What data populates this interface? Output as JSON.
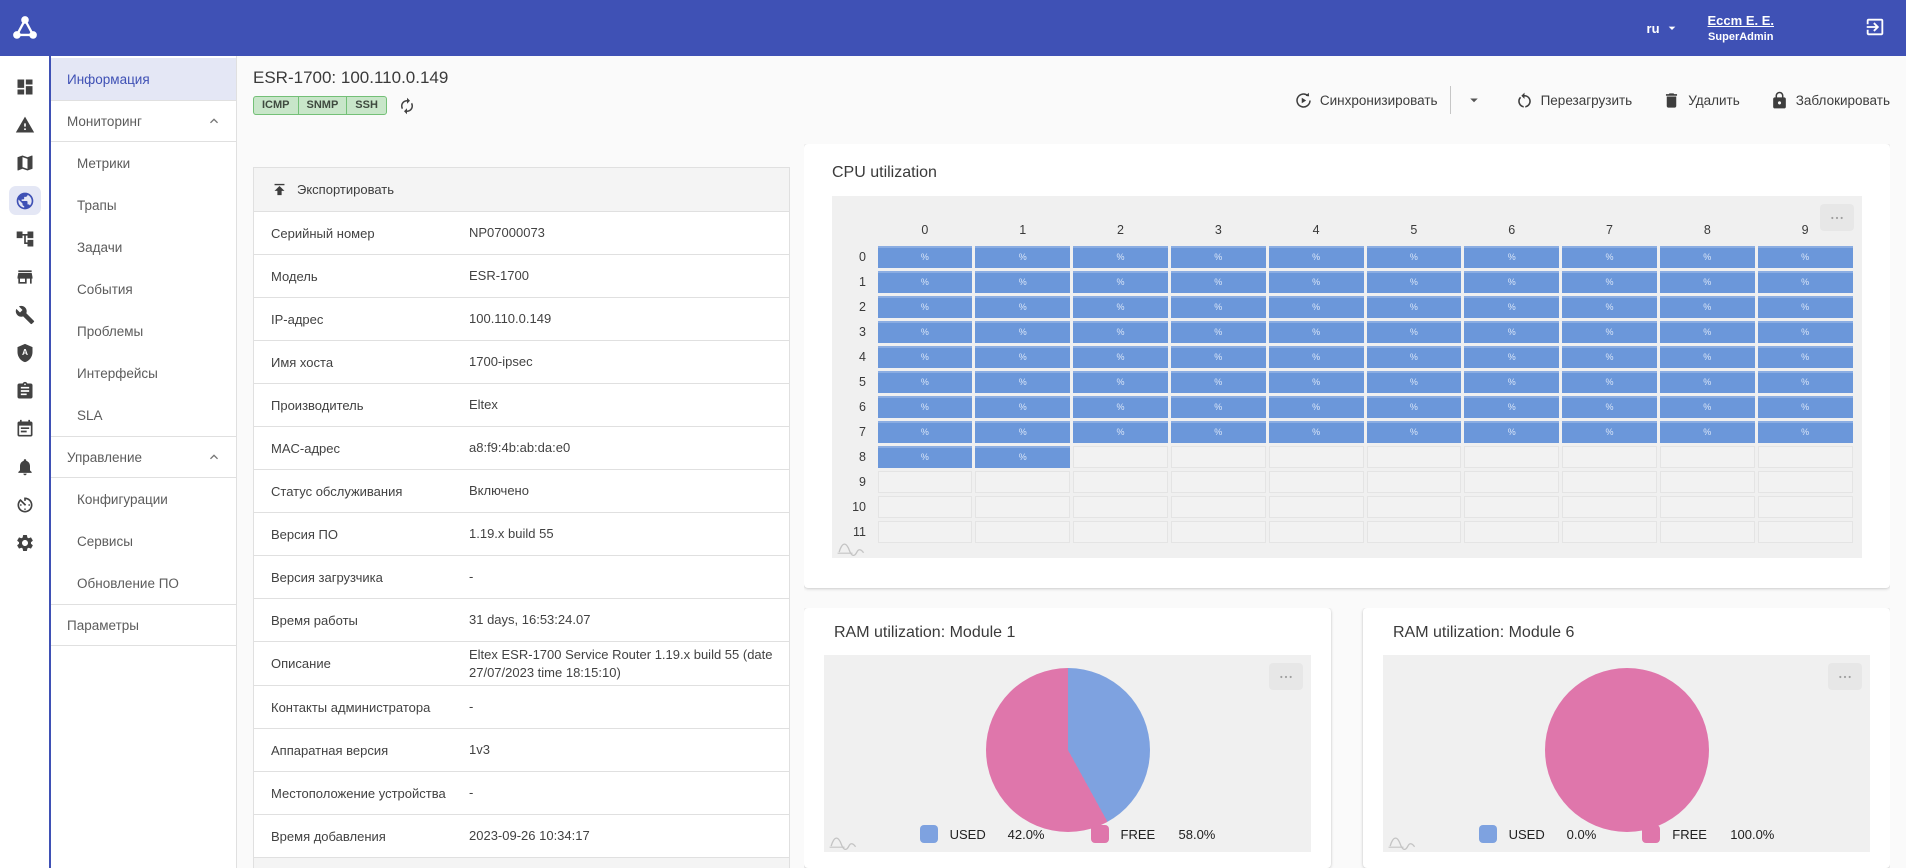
{
  "colors": {
    "accent": "#3f51b5",
    "accent_light": "#e4e7f5",
    "badge_bg": "#c8e6c9",
    "badge_border": "#74c077",
    "card_area": "#f0f0f0",
    "heat_fill": "#6b97da",
    "heat_label": "#d9e5f7",
    "pie_used": "#7ea2e0",
    "pie_free": "#df76ab"
  },
  "topbar": {
    "lang": "ru",
    "user_name": "Eccm E. E.",
    "user_role": "SuperAdmin"
  },
  "rail": {
    "icons": [
      {
        "icon": "dashboard-icon",
        "active": false
      },
      {
        "icon": "alerts-warning-icon",
        "active": false
      },
      {
        "icon": "map-icon",
        "active": false
      },
      {
        "icon": "devices-globe-icon",
        "active": true
      },
      {
        "icon": "topology-icon",
        "active": false
      },
      {
        "icon": "store-icon",
        "active": false
      },
      {
        "icon": "tools-wrench-icon",
        "active": false
      },
      {
        "icon": "security-badge-icon",
        "active": false
      },
      {
        "icon": "tasks-clipboard-icon",
        "active": false
      },
      {
        "icon": "calendar-icon",
        "active": false
      },
      {
        "icon": "notifications-bell-icon",
        "active": false
      },
      {
        "icon": "gauge-timer-icon",
        "active": false
      },
      {
        "icon": "settings-gear-icon",
        "active": false
      }
    ]
  },
  "sidebar": {
    "items": [
      {
        "label": "Информация",
        "type": "link",
        "active": true
      },
      {
        "label": "Мониторинг",
        "type": "section",
        "chevron": "up"
      },
      {
        "label": "Метрики",
        "type": "sub"
      },
      {
        "label": "Трапы",
        "type": "sub"
      },
      {
        "label": "Задачи",
        "type": "sub"
      },
      {
        "label": "События",
        "type": "sub"
      },
      {
        "label": "Проблемы",
        "type": "sub"
      },
      {
        "label": "Интерфейсы",
        "type": "sub"
      },
      {
        "label": "SLA",
        "type": "sub"
      },
      {
        "label": "Управление",
        "type": "section",
        "chevron": "up"
      },
      {
        "label": "Конфигурации",
        "type": "sub"
      },
      {
        "label": "Сервисы",
        "type": "sub"
      },
      {
        "label": "Обновление ПО",
        "type": "sub"
      },
      {
        "label": "Параметры",
        "type": "link",
        "bordered": true
      }
    ]
  },
  "header": {
    "title": "ESR-1700: 100.110.0.149",
    "badges": [
      "ICMP",
      "SNMP",
      "SSH"
    ],
    "actions": [
      {
        "label": "Синхронизировать",
        "icon": "sync-icon",
        "split": true
      },
      {
        "label": "Перезагрузить",
        "icon": "restart-icon"
      },
      {
        "label": "Удалить",
        "icon": "delete-trash-icon"
      },
      {
        "label": "Заблокировать",
        "icon": "lock-icon"
      }
    ]
  },
  "info": {
    "export_label": "Экспортировать",
    "rows": [
      {
        "label": "Серийный номер",
        "value": "NP07000073"
      },
      {
        "label": "Модель",
        "value": "ESR-1700"
      },
      {
        "label": "IP-адрес",
        "value": "100.110.0.149"
      },
      {
        "label": "Имя хоста",
        "value": "1700-ipsec"
      },
      {
        "label": "Производитель",
        "value": "Eltex"
      },
      {
        "label": "MAC-адрес",
        "value": "a8:f9:4b:ab:da:e0"
      },
      {
        "label": "Статус обслуживания",
        "value": "Включено"
      },
      {
        "label": "Версия ПО",
        "value": "1.19.x build 55"
      },
      {
        "label": "Версия загрузчика",
        "value": "-"
      },
      {
        "label": "Время работы",
        "value": "31 days, 16:53:24.07"
      },
      {
        "label": "Описание",
        "value": "Eltex ESR-1700 Service Router 1.19.x build 55 (date 27/07/2023 time 18:15:10)"
      },
      {
        "label": "Контакты администратора",
        "value": "-"
      },
      {
        "label": "Аппаратная версия",
        "value": "1v3"
      },
      {
        "label": "Местоположение устройства",
        "value": "-"
      },
      {
        "label": "Время добавления",
        "value": "2023-09-26 10:34:17"
      }
    ]
  },
  "chart_data": [
    {
      "type": "heatmap",
      "title": "CPU utilization",
      "columns": [
        "0",
        "1",
        "2",
        "3",
        "4",
        "5",
        "6",
        "7",
        "8",
        "9"
      ],
      "rows": [
        "0",
        "1",
        "2",
        "3",
        "4",
        "5",
        "6",
        "7",
        "8",
        "9",
        "10",
        "11"
      ],
      "cell_label": "%",
      "fill_color": "#6b97da",
      "filled": [
        [
          1,
          1,
          1,
          1,
          1,
          1,
          1,
          1,
          1,
          1
        ],
        [
          1,
          1,
          1,
          1,
          1,
          1,
          1,
          1,
          1,
          1
        ],
        [
          1,
          1,
          1,
          1,
          1,
          1,
          1,
          1,
          1,
          1
        ],
        [
          1,
          1,
          1,
          1,
          1,
          1,
          1,
          1,
          1,
          1
        ],
        [
          1,
          1,
          1,
          1,
          1,
          1,
          1,
          1,
          1,
          1
        ],
        [
          1,
          1,
          1,
          1,
          1,
          1,
          1,
          1,
          1,
          1
        ],
        [
          1,
          1,
          1,
          1,
          1,
          1,
          1,
          1,
          1,
          1
        ],
        [
          1,
          1,
          1,
          1,
          1,
          1,
          1,
          1,
          1,
          1
        ],
        [
          1,
          1,
          0,
          0,
          0,
          0,
          0,
          0,
          0,
          0
        ],
        [
          0,
          0,
          0,
          0,
          0,
          0,
          0,
          0,
          0,
          0
        ],
        [
          0,
          0,
          0,
          0,
          0,
          0,
          0,
          0,
          0,
          0
        ],
        [
          0,
          0,
          0,
          0,
          0,
          0,
          0,
          0,
          0,
          0
        ]
      ]
    },
    {
      "type": "pie",
      "title": "RAM utilization: Module 1",
      "legend_position": "bottom",
      "series": [
        {
          "name": "USED",
          "value": 42.0,
          "value_display": "42.0%",
          "color": "#7ea2e0"
        },
        {
          "name": "FREE",
          "value": 58.0,
          "value_display": "58.0%",
          "color": "#df76ab"
        }
      ]
    },
    {
      "type": "pie",
      "title": "RAM utilization: Module 6",
      "legend_position": "bottom",
      "series": [
        {
          "name": "USED",
          "value": 0.0,
          "value_display": "0.0%",
          "color": "#7ea2e0"
        },
        {
          "name": "FREE",
          "value": 100.0,
          "value_display": "100.0%",
          "color": "#df76ab"
        }
      ]
    }
  ]
}
